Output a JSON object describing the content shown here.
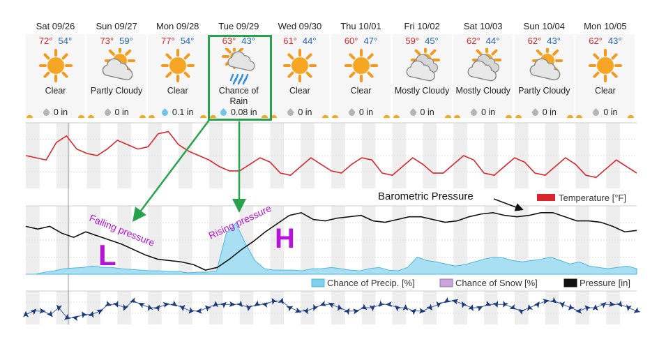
{
  "forecast": [
    {
      "date": "Sat 09/26",
      "hi": "72°",
      "lo": "54°",
      "icon": "sun-icon",
      "condition": "Clear",
      "precip": "0 in",
      "drop": "gray"
    },
    {
      "date": "Sun 09/27",
      "hi": "73°",
      "lo": "59°",
      "icon": "partly-cloudy-icon",
      "condition": "Partly Cloudy",
      "precip": "0 in",
      "drop": "gray"
    },
    {
      "date": "Mon 09/28",
      "hi": "77°",
      "lo": "54°",
      "icon": "sun-icon",
      "condition": "Clear",
      "precip": "0.1 in",
      "drop": "blue"
    },
    {
      "date": "Tue 09/29",
      "hi": "63°",
      "lo": "43°",
      "icon": "rain-cloud-icon",
      "condition": "Chance of Rain",
      "precip": "0.08 in",
      "drop": "blue"
    },
    {
      "date": "Wed 09/30",
      "hi": "61°",
      "lo": "44°",
      "icon": "sun-icon",
      "condition": "Clear",
      "precip": "0 in",
      "drop": "gray"
    },
    {
      "date": "Thu 10/01",
      "hi": "60°",
      "lo": "47°",
      "icon": "sun-icon",
      "condition": "Clear",
      "precip": "0 in",
      "drop": "gray"
    },
    {
      "date": "Fri 10/02",
      "hi": "59°",
      "lo": "45°",
      "icon": "mostly-cloudy-icon",
      "condition": "Mostly Cloudy",
      "precip": "0 in",
      "drop": "gray"
    },
    {
      "date": "Sat 10/03",
      "hi": "62°",
      "lo": "44°",
      "icon": "mostly-cloudy-icon",
      "condition": "Mostly Cloudy",
      "precip": "0 in",
      "drop": "gray"
    },
    {
      "date": "Sun 10/04",
      "hi": "62°",
      "lo": "43°",
      "icon": "partly-cloudy-icon",
      "condition": "Partly Cloudy",
      "precip": "0 in",
      "drop": "gray"
    },
    {
      "date": "Mon 10/05",
      "hi": "62°",
      "lo": "43°",
      "icon": "sun-icon",
      "condition": "Clear",
      "precip": "0 in",
      "drop": "gray"
    }
  ],
  "annotations": {
    "falling": "Falling pressure",
    "rising": "Rising pressure",
    "low": "L",
    "high": "H",
    "baro": "Barometric Pressure"
  },
  "legend_temp": {
    "label": "Temperature [°F]",
    "color": "#d9262c"
  },
  "legend_bottom": [
    {
      "label": "Chance of Precip. [%]",
      "color": "#7fd0ec"
    },
    {
      "label": "Chance of Snow [%]",
      "color": "#c9a6d8"
    },
    {
      "label": "Pressure [in]",
      "color": "#111111"
    }
  ],
  "colors": {
    "highlight": "#27a34c",
    "annotation": "#b515d6",
    "temperature": "#d9262c",
    "precip": "#7fd0ec",
    "wind": "#1c3a7a"
  },
  "chart_data": [
    {
      "type": "line",
      "series": [
        {
          "name": "Temperature [°F]",
          "values": [
            65,
            64,
            63,
            71,
            74,
            68,
            66,
            65,
            68,
            72,
            70,
            68,
            69,
            75,
            76,
            70,
            67,
            65,
            63,
            60,
            58,
            58,
            61,
            64,
            62,
            57,
            56,
            60,
            64,
            61,
            58,
            57,
            61,
            64,
            63,
            57,
            56,
            60,
            64,
            61,
            57,
            57,
            61,
            65,
            63,
            57,
            56,
            60,
            64,
            62,
            57,
            56,
            60,
            64,
            61,
            56,
            55,
            59,
            63,
            60,
            57
          ]
        }
      ]
    },
    {
      "type": "line",
      "series": [
        {
          "name": "Pressure [in]",
          "values": [
            30.1,
            30.08,
            30.1,
            30.05,
            30.02,
            30.06,
            30.03,
            30.0,
            29.97,
            29.93,
            29.89,
            29.86,
            29.85,
            29.84,
            29.82,
            29.78,
            29.8,
            29.86,
            29.93,
            29.99,
            30.06,
            30.12,
            30.18,
            30.2,
            30.15,
            30.14,
            30.16,
            30.17,
            30.18,
            30.14,
            30.13,
            30.15,
            30.17,
            30.17,
            30.15,
            30.13,
            30.14,
            30.17,
            30.19,
            30.2,
            30.18,
            30.17,
            30.18,
            30.2,
            30.2,
            30.17,
            30.14,
            30.14,
            30.13,
            30.1,
            30.06,
            30.07
          ]
        },
        {
          "name": "Chance of Precip. [%]",
          "values": [
            0,
            0,
            3,
            5,
            8,
            9,
            10,
            12,
            10,
            10,
            8,
            7,
            6,
            5,
            5,
            4,
            4,
            2,
            3,
            3,
            5,
            60,
            75,
            45,
            20,
            8,
            6,
            6,
            6,
            5,
            8,
            8,
            10,
            8,
            6,
            5,
            8,
            10,
            6,
            5,
            10,
            25,
            20,
            18,
            15,
            12,
            14,
            18,
            22,
            25,
            24,
            20,
            18,
            20,
            22,
            25,
            20,
            15,
            18,
            12,
            10,
            8,
            10,
            12,
            8
          ]
        },
        {
          "name": "Chance of Snow [%]",
          "values": []
        }
      ]
    },
    {
      "type": "line",
      "series": [
        {
          "name": "Wind",
          "values": [
            3,
            4,
            4,
            3,
            5,
            2,
            2,
            3,
            3,
            4,
            6,
            6,
            5,
            7,
            6,
            5,
            5,
            6,
            6,
            5,
            4,
            4,
            5,
            6,
            6,
            6,
            6,
            5,
            6,
            6,
            7,
            7,
            5,
            4,
            4,
            5,
            6,
            6,
            5,
            4,
            4,
            5,
            5,
            6,
            6,
            5,
            5,
            4,
            4,
            5,
            6,
            7,
            7,
            6,
            5,
            5,
            6,
            6,
            6,
            5,
            4,
            5,
            6,
            7,
            7,
            6,
            5,
            4,
            5,
            5,
            6,
            6,
            6,
            5,
            4
          ]
        }
      ]
    }
  ]
}
